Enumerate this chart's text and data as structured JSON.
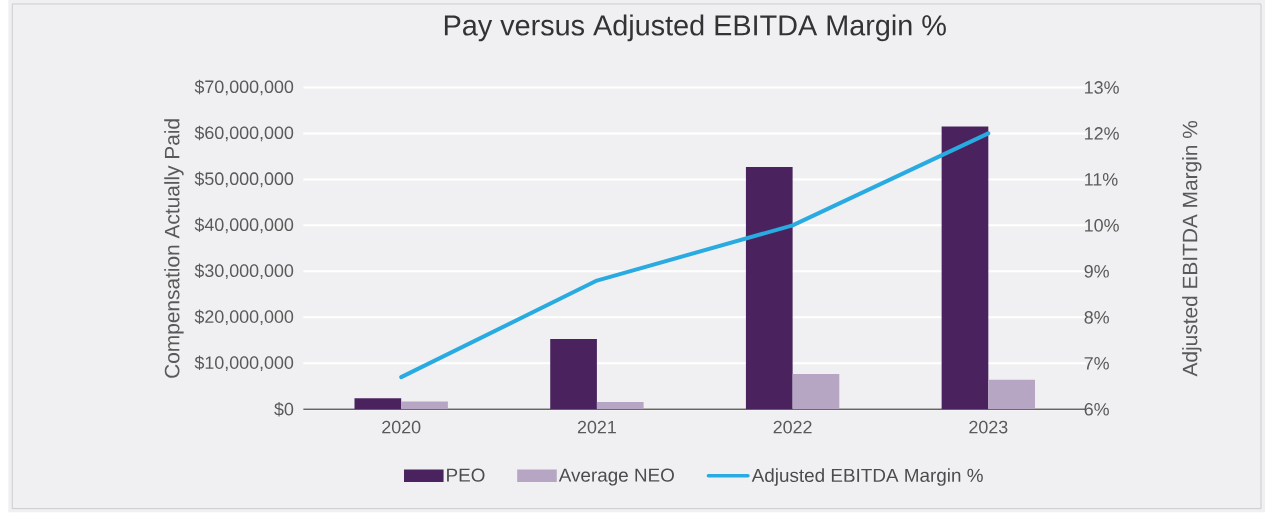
{
  "chart_data": {
    "type": "bar",
    "title": "Pay versus Adjusted EBITDA Margin %",
    "ylabel": "Compensation Actually Paid",
    "y2label": "Adjusted EBITDA Margin %",
    "categories": [
      "2020",
      "2021",
      "2022",
      "2023"
    ],
    "series": [
      {
        "name": "PEO",
        "color": "#4a235e",
        "values": [
          2400000,
          15300000,
          52700000,
          61500000
        ]
      },
      {
        "name": "Average NEO",
        "color": "#b6a6c4",
        "values": [
          1700000,
          1600000,
          7700000,
          6400000
        ]
      },
      {
        "name": "Adjusted EBITDA Margin %",
        "type": "line",
        "axis": "y2",
        "color": "#29abe2",
        "values": [
          6.7,
          8.8,
          10.0,
          12.0
        ]
      }
    ],
    "ylim": [
      0,
      70000000
    ],
    "yticks": [
      {
        "value": 0,
        "label": "$0"
      },
      {
        "value": 10000000,
        "label": "$10,000,000"
      },
      {
        "value": 20000000,
        "label": "$20,000,000"
      },
      {
        "value": 30000000,
        "label": "$30,000,000"
      },
      {
        "value": 40000000,
        "label": "$40,000,000"
      },
      {
        "value": 50000000,
        "label": "$50,000,000"
      },
      {
        "value": 60000000,
        "label": "$60,000,000"
      },
      {
        "value": 70000000,
        "label": "$70,000,000"
      }
    ],
    "y2lim": [
      6,
      13
    ],
    "y2ticks": [
      {
        "value": 6,
        "label": "6%"
      },
      {
        "value": 7,
        "label": "7%"
      },
      {
        "value": 8,
        "label": "8%"
      },
      {
        "value": 9,
        "label": "9%"
      },
      {
        "value": 10,
        "label": "10%"
      },
      {
        "value": 11,
        "label": "11%"
      },
      {
        "value": 12,
        "label": "12%"
      },
      {
        "value": 13,
        "label": "13%"
      }
    ],
    "grid": "y",
    "legend": "bottom",
    "marker": "none",
    "line_style": "solid"
  }
}
